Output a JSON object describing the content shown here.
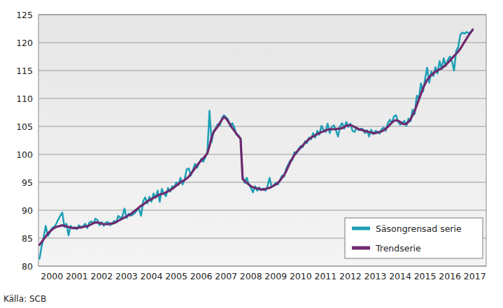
{
  "chart_data": {
    "type": "line",
    "source": "Källa: SCB",
    "categories": [
      null,
      null,
      null,
      null,
      null,
      null,
      "2000",
      null,
      null,
      null,
      null,
      null,
      null,
      null,
      null,
      null,
      null,
      null,
      "2001",
      null,
      null,
      null,
      null,
      null,
      null,
      null,
      null,
      null,
      null,
      null,
      "2002",
      null,
      null,
      null,
      null,
      null,
      null,
      null,
      null,
      null,
      null,
      null,
      "2003",
      null,
      null,
      null,
      null,
      null,
      null,
      null,
      null,
      null,
      null,
      null,
      "2004",
      null,
      null,
      null,
      null,
      null,
      null,
      null,
      null,
      null,
      null,
      null,
      "2005",
      null,
      null,
      null,
      null,
      null,
      null,
      null,
      null,
      null,
      null,
      null,
      "2006",
      null,
      null,
      null,
      null,
      null,
      null,
      null,
      null,
      null,
      null,
      null,
      "2007",
      null,
      null,
      null,
      null,
      null,
      null,
      null,
      null,
      null,
      null,
      null,
      "2008",
      null,
      null,
      null,
      null,
      null,
      null,
      null,
      null,
      null,
      null,
      null,
      "2009",
      null,
      null,
      null,
      null,
      null,
      null,
      null,
      null,
      null,
      null,
      null,
      "2010",
      null,
      null,
      null,
      null,
      null,
      null,
      null,
      null,
      null,
      null,
      null,
      "2011",
      null,
      null,
      null,
      null,
      null,
      null,
      null,
      null,
      null,
      null,
      null,
      "2012",
      null,
      null,
      null,
      null,
      null,
      null,
      null,
      null,
      null,
      null,
      null,
      "2013",
      null,
      null,
      null,
      null,
      null,
      null,
      null,
      null,
      null,
      null,
      null,
      "2014",
      null,
      null,
      null,
      null,
      null,
      null,
      null,
      null,
      null,
      null,
      null,
      "2015",
      null,
      null,
      null,
      null,
      null,
      null,
      null,
      null,
      null,
      null,
      null,
      "2016",
      null,
      null,
      null,
      null,
      null,
      null,
      null,
      null,
      null,
      null,
      null,
      "2017",
      null,
      null,
      null,
      null,
      null
    ],
    "series": [
      {
        "name": "Säsongrensad serie",
        "color": "#1c9fb6",
        "values": [
          81.3,
          83.5,
          85.2,
          87.2,
          85.4,
          86.0,
          86.8,
          87.0,
          87.5,
          88.3,
          89.0,
          89.6,
          87.0,
          87.6,
          85.5,
          87.2,
          86.8,
          87.0,
          86.6,
          87.3,
          87.0,
          87.1,
          87.6,
          86.8,
          87.8,
          88.0,
          87.6,
          88.5,
          88.2,
          87.3,
          87.9,
          87.2,
          87.8,
          87.9,
          87.3,
          87.6,
          88.1,
          87.8,
          89.0,
          88.6,
          88.9,
          90.3,
          88.6,
          89.4,
          89.0,
          89.2,
          89.5,
          90.0,
          90.2,
          89.0,
          91.6,
          92.3,
          91.2,
          92.4,
          91.5,
          93.0,
          92.2,
          93.5,
          91.5,
          93.8,
          93.0,
          92.5,
          94.0,
          93.3,
          94.3,
          94.1,
          95.0,
          94.5,
          95.8,
          94.6,
          95.5,
          97.3,
          97.5,
          96.2,
          97.2,
          98.3,
          97.6,
          98.5,
          99.2,
          98.7,
          99.5,
          100.5,
          107.8,
          102.2,
          104.2,
          104.7,
          105.4,
          105.2,
          106.5,
          107.0,
          106.6,
          106.2,
          105.0,
          105.6,
          104.8,
          103.5,
          103.4,
          102.8,
          96.0,
          94.9,
          95.8,
          94.6,
          94.0,
          93.2,
          94.3,
          93.5,
          94.1,
          93.6,
          93.9,
          93.5,
          94.3,
          95.8,
          94.1,
          94.5,
          94.9,
          94.6,
          95.4,
          96.2,
          96.0,
          97.4,
          98.2,
          98.9,
          99.0,
          100.4,
          100.2,
          101.0,
          101.5,
          101.3,
          102.3,
          102.0,
          103.0,
          102.7,
          103.8,
          103.0,
          104.2,
          103.5,
          105.1,
          104.4,
          104.0,
          105.5,
          103.8,
          104.9,
          105.2,
          104.3,
          103.2,
          105.0,
          105.6,
          104.6,
          105.8,
          104.9,
          105.5,
          104.2,
          104.0,
          104.8,
          104.3,
          104.6,
          104.5,
          103.8,
          104.3,
          103.2,
          104.4,
          103.6,
          104.2,
          104.1,
          103.7,
          104.5,
          104.8,
          104.2,
          105.5,
          106.2,
          105.6,
          106.8,
          107.0,
          105.8,
          105.3,
          105.6,
          106.0,
          105.1,
          106.4,
          105.9,
          108.0,
          107.2,
          110.5,
          110.0,
          112.7,
          111.2,
          113.5,
          115.5,
          112.8,
          114.8,
          114.0,
          115.6,
          114.5,
          116.7,
          115.3,
          117.2,
          115.8,
          116.9,
          117.5,
          116.6,
          115.0,
          118.5,
          119.2,
          121.4,
          121.8,
          121.6,
          121.9,
          121.7,
          121.9,
          122.4,
          null,
          null,
          null,
          null,
          null,
          null
        ]
      },
      {
        "name": "Trendserie",
        "color": "#6e2a6f",
        "values": [
          83.8,
          84.3,
          84.8,
          85.3,
          85.8,
          86.2,
          86.5,
          86.8,
          87.0,
          87.1,
          87.2,
          87.3,
          87.2,
          87.1,
          87.0,
          86.9,
          86.8,
          86.8,
          86.8,
          86.9,
          86.9,
          87.0,
          87.1,
          87.1,
          87.3,
          87.5,
          87.7,
          87.8,
          87.8,
          87.7,
          87.6,
          87.5,
          87.5,
          87.5,
          87.6,
          87.6,
          87.7,
          87.9,
          88.1,
          88.3,
          88.5,
          88.7,
          88.9,
          89.1,
          89.3,
          89.6,
          89.9,
          90.2,
          90.5,
          90.8,
          91.0,
          91.3,
          91.6,
          91.8,
          92.0,
          92.2,
          92.4,
          92.6,
          92.8,
          92.9,
          93.0,
          93.2,
          93.4,
          93.6,
          93.8,
          94.1,
          94.4,
          94.7,
          95.0,
          95.2,
          95.4,
          95.7,
          96.0,
          96.5,
          97.0,
          97.5,
          98.0,
          98.5,
          98.9,
          99.3,
          99.7,
          100.2,
          101.5,
          103.0,
          104.0,
          104.5,
          105.0,
          105.6,
          106.2,
          106.7,
          106.4,
          105.9,
          105.3,
          104.7,
          104.2,
          103.7,
          103.2,
          102.8,
          95.6,
          95.2,
          94.9,
          94.6,
          94.3,
          94.1,
          94.0,
          93.9,
          93.8,
          93.7,
          93.7,
          93.8,
          93.9,
          94.0,
          94.2,
          94.4,
          94.6,
          94.9,
          95.3,
          95.8,
          96.3,
          97.0,
          97.8,
          98.6,
          99.3,
          99.9,
          100.4,
          100.8,
          101.2,
          101.6,
          102.0,
          102.4,
          102.7,
          103.0,
          103.2,
          103.4,
          103.6,
          103.8,
          104.0,
          104.1,
          104.3,
          104.4,
          104.5,
          104.5,
          104.5,
          104.5,
          104.6,
          104.6,
          104.7,
          104.9,
          105.1,
          105.2,
          105.2,
          105.1,
          104.9,
          104.7,
          104.5,
          104.4,
          104.3,
          104.2,
          104.1,
          104.0,
          103.9,
          103.8,
          103.8,
          103.9,
          104.0,
          104.1,
          104.3,
          104.6,
          104.9,
          105.3,
          105.7,
          106.0,
          106.1,
          106.0,
          105.8,
          105.5,
          105.4,
          105.5,
          105.8,
          106.3,
          107.0,
          107.8,
          108.8,
          109.8,
          110.8,
          111.8,
          112.6,
          113.3,
          113.8,
          114.2,
          114.5,
          114.8,
          115.0,
          115.2,
          115.4,
          115.7,
          116.0,
          116.4,
          116.8,
          117.2,
          117.6,
          118.0,
          118.4,
          118.9,
          119.5,
          120.1,
          120.7,
          121.3,
          121.8,
          122.3,
          null,
          null,
          null,
          null,
          null,
          null
        ]
      }
    ],
    "ylim": [
      80,
      125
    ],
    "yticks": [
      80,
      85,
      90,
      95,
      100,
      105,
      110,
      115,
      120,
      125
    ],
    "grid": true,
    "legend": "lower right"
  }
}
